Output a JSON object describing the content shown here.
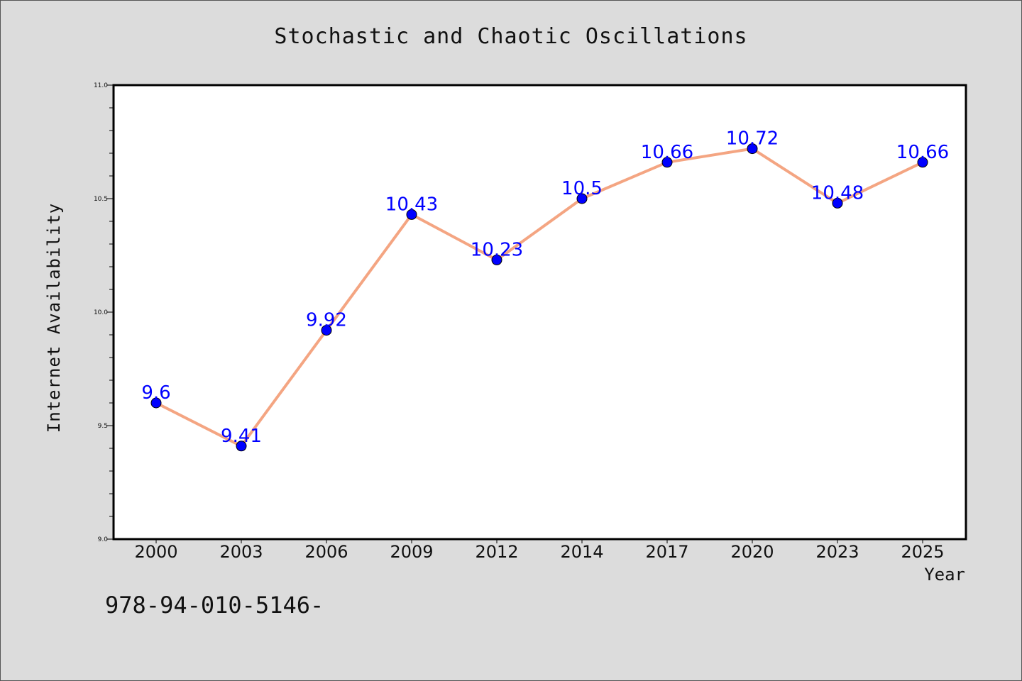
{
  "chart_data": {
    "type": "line",
    "title": "Stochastic and Chaotic Oscillations",
    "xlabel": "Year",
    "ylabel": "Internet Availability",
    "categories": [
      "2000",
      "2003",
      "2006",
      "2009",
      "2012",
      "2014",
      "2017",
      "2020",
      "2023",
      "2025"
    ],
    "series": [
      {
        "values": [
          9.6,
          9.41,
          9.92,
          10.43,
          10.23,
          10.5,
          10.66,
          10.72,
          10.48,
          10.66
        ],
        "data_labels": [
          "9.6",
          "9.41",
          "9.92",
          "10.43",
          "10.23",
          "10.5",
          "10.66",
          "10.72",
          "10.48",
          "10.66"
        ]
      }
    ],
    "ylim": [
      9.0,
      11.0
    ],
    "yticks": [
      "9.0",
      "9.5",
      "10.0",
      "10.5",
      "11.0"
    ],
    "grid": false,
    "colors": {
      "line": "#f4a582",
      "marker": "#0000ff",
      "data_label": "#0000ff",
      "background": "#dcdcdc",
      "plot_area": "#ffffff"
    }
  },
  "annotation": "978-94-010-5146-"
}
